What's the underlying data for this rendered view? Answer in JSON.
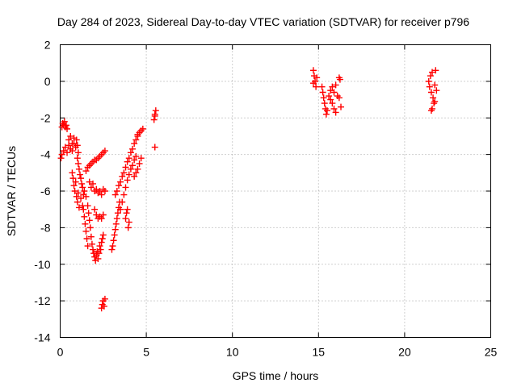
{
  "chart_data": {
    "type": "scatter",
    "title": "Day 284 of 2023, Sidereal Day-to-day VTEC variation (SDTVAR) for receiver p796",
    "xlabel": "GPS time / hours",
    "ylabel": "SDTVAR / TECUs",
    "xlim": [
      0,
      25
    ],
    "ylim": [
      -14,
      2
    ],
    "xticks": [
      0,
      5,
      10,
      15,
      20,
      25
    ],
    "yticks": [
      -14,
      -12,
      -10,
      -8,
      -6,
      -4,
      -2,
      0,
      2
    ],
    "xtick_labels": [
      "0",
      "5",
      "10",
      "15",
      "20",
      "25"
    ],
    "ytick_labels": [
      "-14",
      "-12",
      "-10",
      "-8",
      "-6",
      "-4",
      "-2",
      "0",
      "2"
    ],
    "grid": true,
    "marker": "plus",
    "color": "#ff0000",
    "series": [
      {
        "values": [
          [
            0.05,
            -4.2
          ],
          [
            0.1,
            -4.0
          ],
          [
            0.1,
            -2.5
          ],
          [
            0.15,
            -2.3
          ],
          [
            0.2,
            -2.4
          ],
          [
            0.25,
            -2.2
          ],
          [
            0.3,
            -2.5
          ],
          [
            0.35,
            -2.4
          ],
          [
            0.4,
            -2.6
          ],
          [
            0.2,
            -3.8
          ],
          [
            0.3,
            -3.6
          ],
          [
            0.4,
            -3.9
          ],
          [
            0.5,
            -3.5
          ],
          [
            0.6,
            -3.7
          ],
          [
            0.7,
            -3.8
          ],
          [
            0.8,
            -3.4
          ],
          [
            0.9,
            -3.6
          ],
          [
            0.95,
            -3.2
          ],
          [
            1.0,
            -3.5
          ],
          [
            1.05,
            -3.9
          ],
          [
            0.5,
            -3.2
          ],
          [
            0.6,
            -3.0
          ],
          [
            0.7,
            -3.4
          ],
          [
            0.8,
            -3.1
          ],
          [
            0.7,
            -5.0
          ],
          [
            0.75,
            -5.3
          ],
          [
            0.8,
            -5.7
          ],
          [
            0.85,
            -6.0
          ],
          [
            0.9,
            -5.5
          ],
          [
            0.95,
            -6.3
          ],
          [
            1.0,
            -6.6
          ],
          [
            1.05,
            -6.1
          ],
          [
            1.1,
            -6.9
          ],
          [
            1.0,
            -4.2
          ],
          [
            1.05,
            -4.5
          ],
          [
            1.1,
            -4.8
          ],
          [
            1.15,
            -5.1
          ],
          [
            1.2,
            -5.3
          ],
          [
            1.25,
            -5.6
          ],
          [
            1.3,
            -5.8
          ],
          [
            1.35,
            -6.2
          ],
          [
            1.2,
            -6.4
          ],
          [
            1.3,
            -6.8
          ],
          [
            1.35,
            -7.0
          ],
          [
            1.4,
            -7.4
          ],
          [
            1.45,
            -7.8
          ],
          [
            1.5,
            -8.2
          ],
          [
            1.55,
            -8.6
          ],
          [
            1.6,
            -9.0
          ],
          [
            1.4,
            -6.0
          ],
          [
            1.5,
            -6.3
          ],
          [
            1.6,
            -6.8
          ],
          [
            1.65,
            -7.2
          ],
          [
            1.7,
            -7.6
          ],
          [
            1.75,
            -8.0
          ],
          [
            1.8,
            -8.5
          ],
          [
            1.85,
            -8.9
          ],
          [
            1.9,
            -9.2
          ],
          [
            1.95,
            -9.4
          ],
          [
            2.0,
            -9.6
          ],
          [
            2.05,
            -9.8
          ],
          [
            2.1,
            -9.5
          ],
          [
            2.15,
            -9.3
          ],
          [
            2.2,
            -9.7
          ],
          [
            2.25,
            -9.4
          ],
          [
            2.3,
            -9.0
          ],
          [
            2.35,
            -9.2
          ],
          [
            2.4,
            -8.8
          ],
          [
            2.45,
            -8.6
          ],
          [
            2.5,
            -8.4
          ],
          [
            1.7,
            -5.5
          ],
          [
            1.8,
            -5.8
          ],
          [
            1.9,
            -5.6
          ],
          [
            2.0,
            -6.0
          ],
          [
            2.1,
            -5.9
          ],
          [
            2.2,
            -6.1
          ],
          [
            2.3,
            -6.0
          ],
          [
            2.4,
            -6.2
          ],
          [
            2.5,
            -5.9
          ],
          [
            2.6,
            -6.0
          ],
          [
            1.5,
            -4.9
          ],
          [
            1.6,
            -4.7
          ],
          [
            1.7,
            -4.6
          ],
          [
            1.8,
            -4.5
          ],
          [
            1.9,
            -4.4
          ],
          [
            2.0,
            -4.3
          ],
          [
            2.1,
            -4.3
          ],
          [
            2.2,
            -4.2
          ],
          [
            2.3,
            -4.1
          ],
          [
            2.4,
            -4.0
          ],
          [
            2.5,
            -3.9
          ],
          [
            2.6,
            -3.8
          ],
          [
            2.0,
            -7.0
          ],
          [
            2.1,
            -7.3
          ],
          [
            2.2,
            -7.5
          ],
          [
            2.3,
            -7.4
          ],
          [
            2.4,
            -7.5
          ],
          [
            2.5,
            -7.3
          ],
          [
            2.4,
            -12.4
          ],
          [
            2.45,
            -12.2
          ],
          [
            2.5,
            -12.0
          ],
          [
            2.55,
            -12.3
          ],
          [
            2.6,
            -11.9
          ],
          [
            3.0,
            -9.2
          ],
          [
            3.05,
            -9.0
          ],
          [
            3.1,
            -8.7
          ],
          [
            3.15,
            -8.4
          ],
          [
            3.2,
            -8.1
          ],
          [
            3.25,
            -7.8
          ],
          [
            3.3,
            -7.5
          ],
          [
            3.35,
            -7.2
          ],
          [
            3.4,
            -6.9
          ],
          [
            3.45,
            -6.6
          ],
          [
            3.2,
            -6.2
          ],
          [
            3.3,
            -6.0
          ],
          [
            3.4,
            -5.7
          ],
          [
            3.5,
            -5.5
          ],
          [
            3.6,
            -5.2
          ],
          [
            3.7,
            -5.0
          ],
          [
            3.8,
            -4.7
          ],
          [
            3.9,
            -4.4
          ],
          [
            4.0,
            -4.2
          ],
          [
            4.1,
            -3.9
          ],
          [
            4.2,
            -3.7
          ],
          [
            4.3,
            -3.4
          ],
          [
            4.4,
            -3.2
          ],
          [
            4.5,
            -3.0
          ],
          [
            3.5,
            -7.0
          ],
          [
            3.6,
            -6.6
          ],
          [
            3.7,
            -6.2
          ],
          [
            3.8,
            -5.8
          ],
          [
            3.9,
            -5.4
          ],
          [
            4.0,
            -5.1
          ],
          [
            4.1,
            -4.8
          ],
          [
            4.2,
            -4.6
          ],
          [
            4.3,
            -4.3
          ],
          [
            4.4,
            -4.1
          ],
          [
            3.8,
            -7.5
          ],
          [
            3.85,
            -7.2
          ],
          [
            3.9,
            -7.0
          ],
          [
            3.95,
            -8.0
          ],
          [
            4.0,
            -7.7
          ],
          [
            4.3,
            -5.2
          ],
          [
            4.4,
            -5.0
          ],
          [
            4.5,
            -4.8
          ],
          [
            4.6,
            -4.5
          ],
          [
            4.7,
            -4.2
          ],
          [
            4.5,
            -2.9
          ],
          [
            4.6,
            -2.8
          ],
          [
            4.7,
            -2.7
          ],
          [
            4.8,
            -2.6
          ],
          [
            5.45,
            -2.1
          ],
          [
            5.5,
            -1.8
          ],
          [
            5.55,
            -1.6
          ],
          [
            5.5,
            -1.9
          ],
          [
            5.5,
            -3.6
          ],
          [
            14.7,
            0.6
          ],
          [
            14.75,
            0.3
          ],
          [
            14.8,
            0.0
          ],
          [
            14.85,
            -0.3
          ],
          [
            14.9,
            0.2
          ],
          [
            14.7,
            -0.1
          ],
          [
            15.2,
            -0.3
          ],
          [
            15.25,
            -0.6
          ],
          [
            15.3,
            -0.9
          ],
          [
            15.35,
            -1.2
          ],
          [
            15.4,
            -1.5
          ],
          [
            15.45,
            -1.8
          ],
          [
            15.5,
            -1.6
          ],
          [
            15.6,
            -0.8
          ],
          [
            15.7,
            -1.0
          ],
          [
            15.8,
            -1.2
          ],
          [
            15.9,
            -1.5
          ],
          [
            16.0,
            -1.7
          ],
          [
            15.7,
            -0.5
          ],
          [
            15.8,
            -0.3
          ],
          [
            15.9,
            -0.6
          ],
          [
            16.0,
            -0.2
          ],
          [
            16.1,
            -0.8
          ],
          [
            16.2,
            -0.9
          ],
          [
            16.2,
            0.2
          ],
          [
            16.25,
            0.1
          ],
          [
            16.3,
            -1.4
          ],
          [
            21.4,
            0.0
          ],
          [
            21.45,
            -0.3
          ],
          [
            21.5,
            0.3
          ],
          [
            21.55,
            -0.6
          ],
          [
            21.6,
            0.5
          ],
          [
            21.65,
            -0.9
          ],
          [
            21.7,
            -1.2
          ],
          [
            21.75,
            -0.2
          ],
          [
            21.8,
            0.6
          ],
          [
            21.85,
            -0.5
          ],
          [
            21.6,
            -1.5
          ],
          [
            21.55,
            -1.6
          ],
          [
            21.75,
            -1.1
          ]
        ]
      }
    ]
  }
}
